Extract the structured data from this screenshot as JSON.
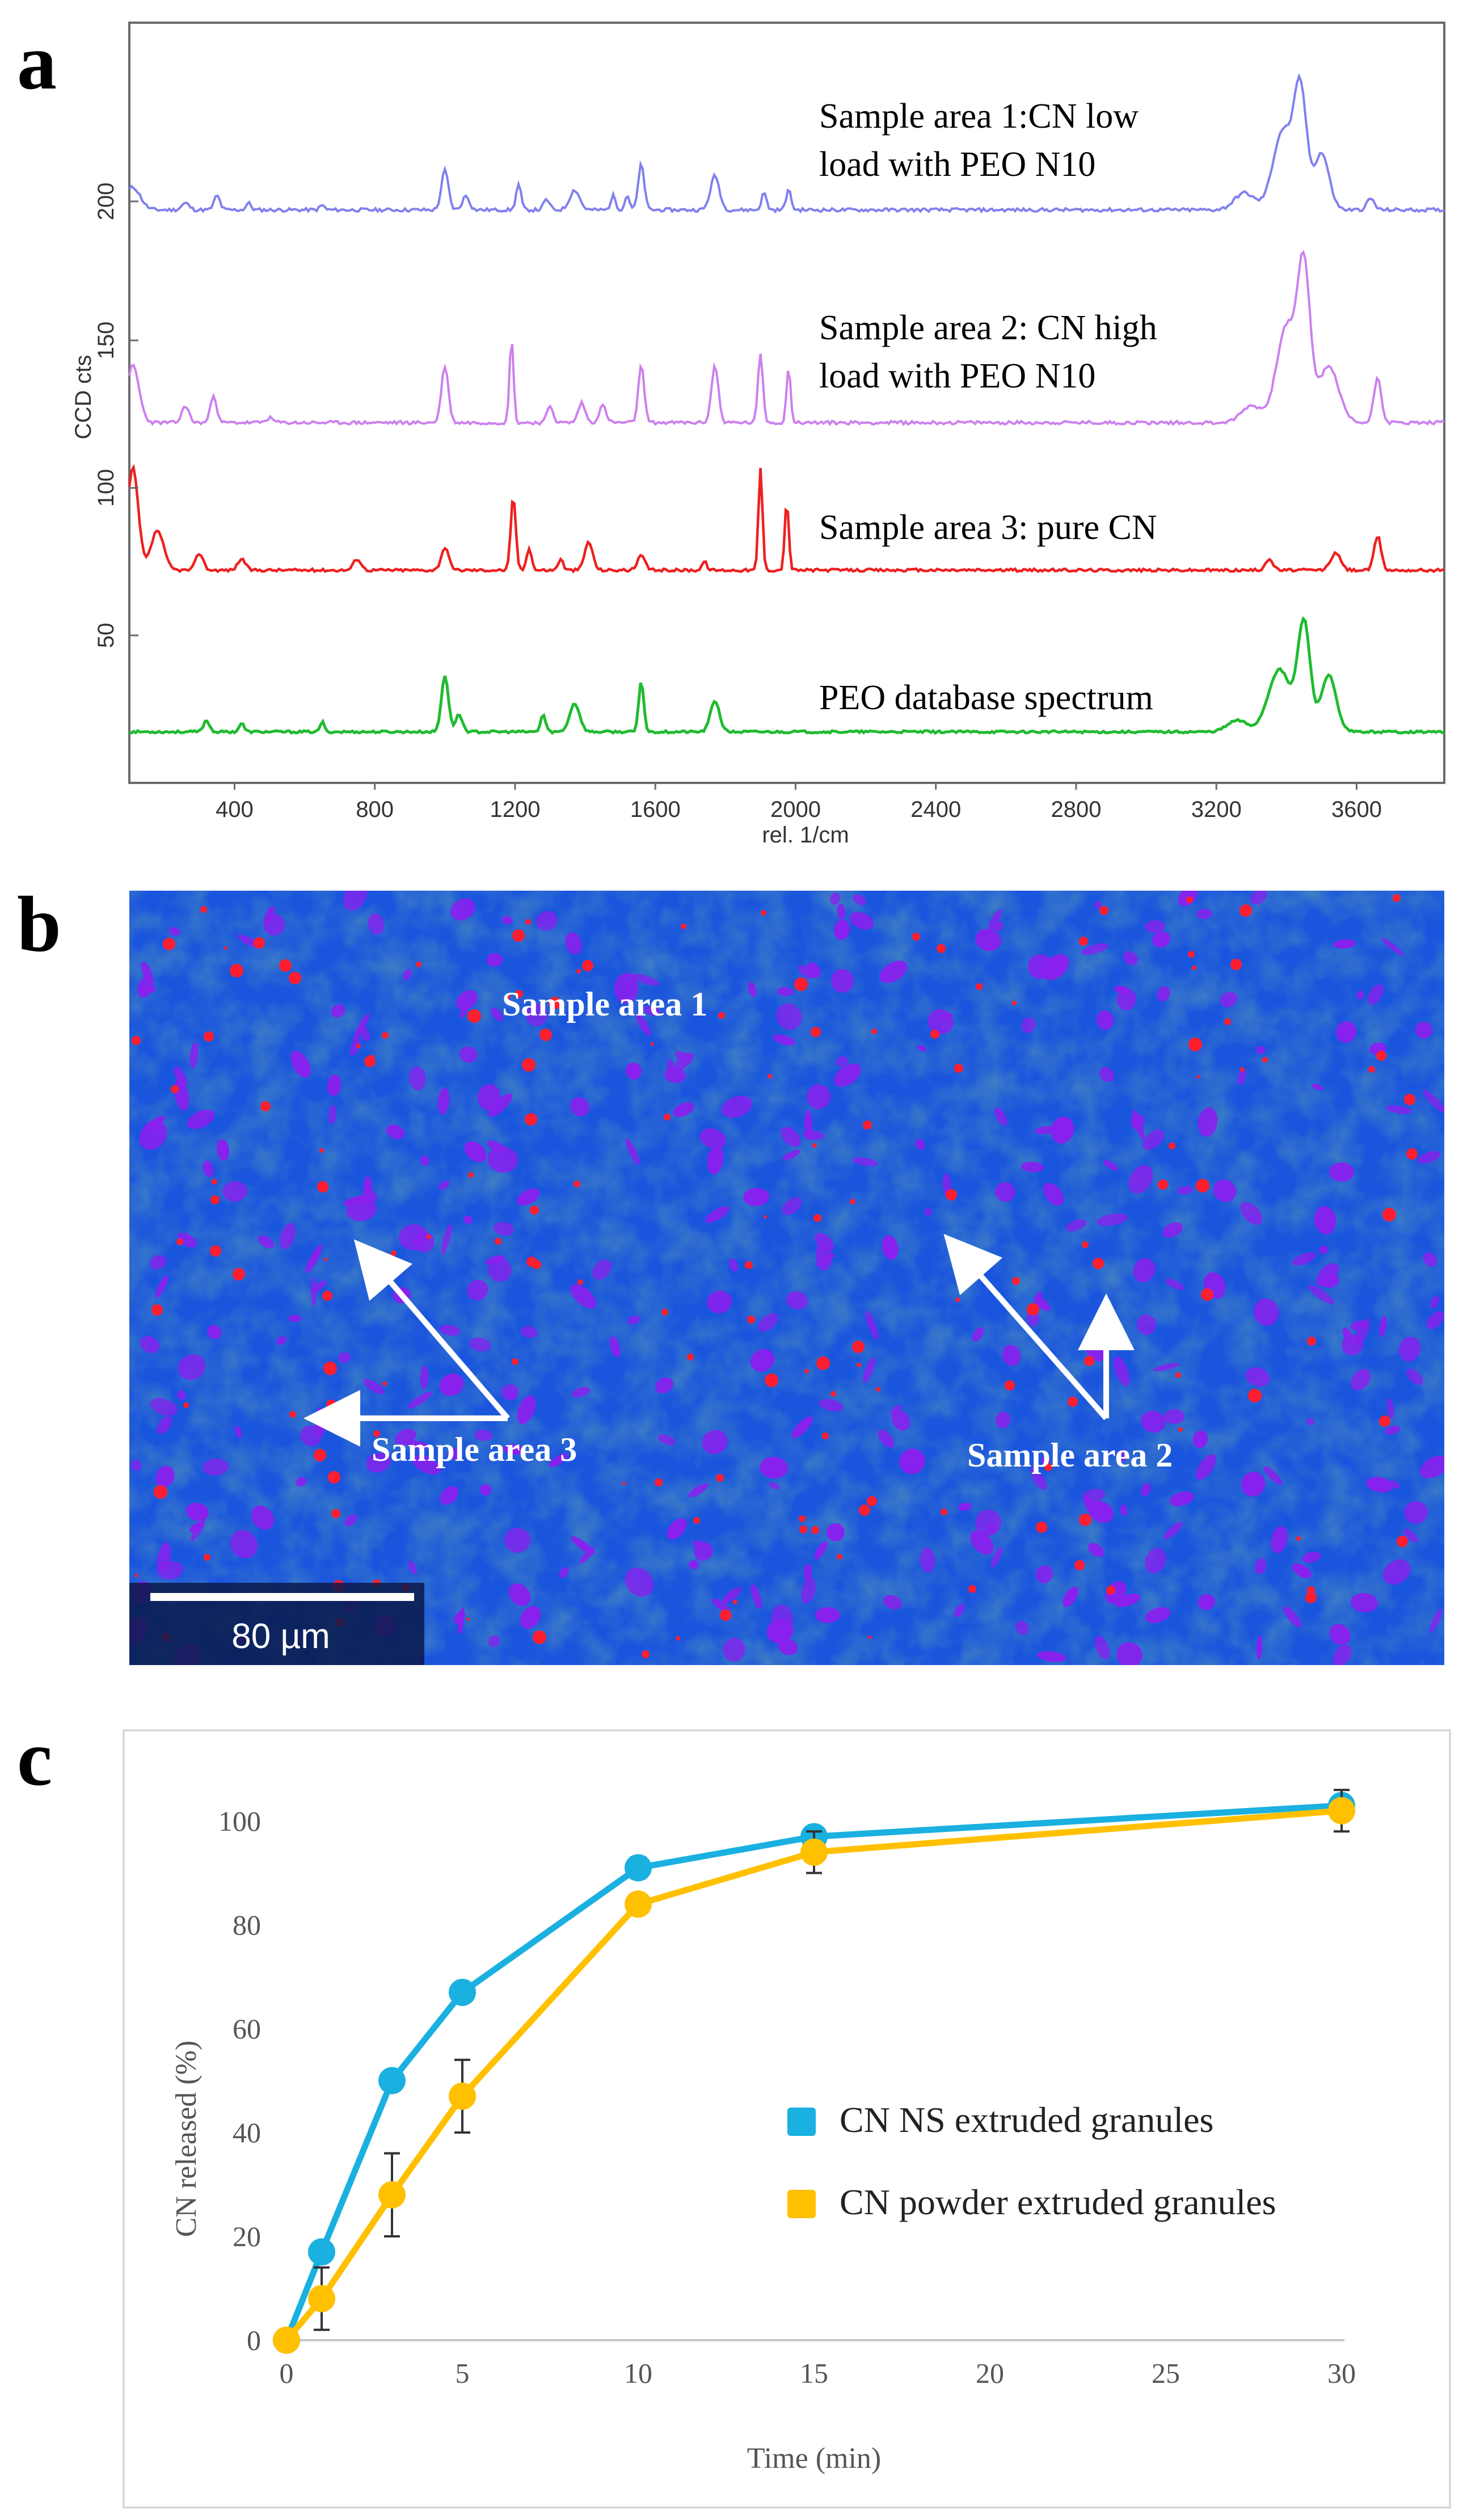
{
  "figure": {
    "panel_a_label": "a",
    "panel_b_label": "b",
    "panel_c_label": "c"
  },
  "panel_a": {
    "y_axis_label": "CCD cts",
    "x_axis_label": "rel. 1/cm",
    "x_ticks": [
      "400",
      "800",
      "1200",
      "1600",
      "2000",
      "2400",
      "2800",
      "3200",
      "3600"
    ],
    "y_ticks": [
      "200",
      "150",
      "100",
      "50"
    ],
    "annotations": [
      "Sample area 1:CN low",
      "load with PEO N10",
      "Sample area 2: CN high",
      "load with PEO N10",
      "Sample area 3: pure CN",
      "PEO database spectrum"
    ],
    "colors": {
      "trace_1": "#8080ee",
      "trace_2": "#cc80ee",
      "trace_3": "#ee2020",
      "trace_4": "#20bb30"
    }
  },
  "panel_b": {
    "labels": [
      "Sample area 1",
      "Sample area 3",
      "Sample area 2"
    ],
    "scale_bar_label": "80 µm",
    "colors": {
      "background": "#1a55dd",
      "particle_purple": "#8a20ee",
      "particle_red": "#ff1e30"
    }
  },
  "chart_data": {
    "type": "line",
    "title": "",
    "xlabel": "Time (min)",
    "ylabel": "CN released (%)",
    "xlim": [
      0,
      30
    ],
    "ylim": [
      0,
      100
    ],
    "x_ticks": [
      0,
      5,
      10,
      15,
      20,
      25,
      30
    ],
    "y_ticks": [
      0,
      20,
      40,
      60,
      80,
      100
    ],
    "legend_position": "right",
    "series": [
      {
        "name": "CN NS extruded granules",
        "color": "#1ab0e0",
        "x": [
          0,
          1,
          3,
          5,
          10,
          15,
          30
        ],
        "values": [
          0,
          17,
          50,
          67,
          91,
          97,
          103
        ],
        "errors": [
          0,
          1,
          1,
          1,
          2,
          1.5,
          1
        ]
      },
      {
        "name": "CN powder extruded granules",
        "color": "#ffc000",
        "x": [
          0,
          1,
          3,
          5,
          10,
          15,
          30
        ],
        "values": [
          0,
          8,
          28,
          47,
          84,
          94,
          102
        ],
        "errors": [
          0,
          6,
          8,
          7,
          1.5,
          4,
          4
        ]
      }
    ]
  }
}
